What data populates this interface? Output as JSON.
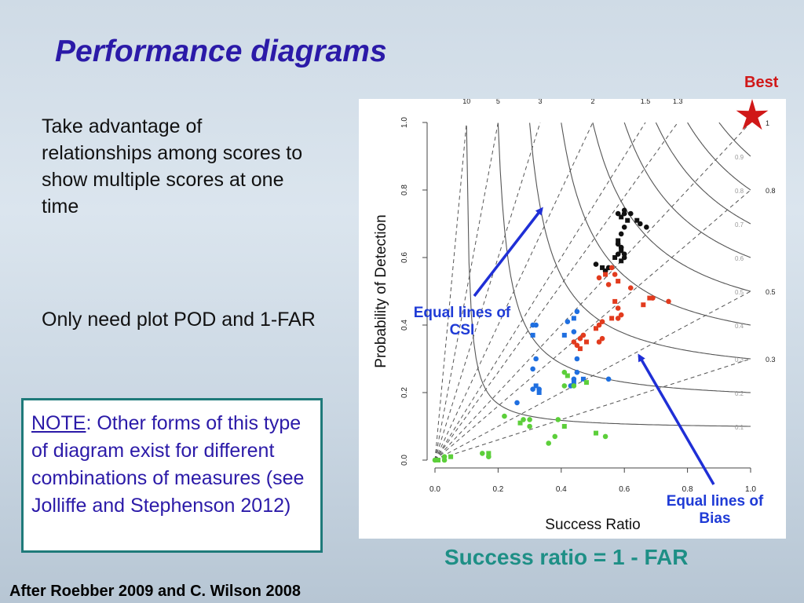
{
  "slide": {
    "title": "Performance diagrams",
    "para1": "Take advantage of relationships among scores to show multiple scores at one time",
    "para2": "Only need plot POD and 1-FAR",
    "note_word": "NOTE",
    "note_text": ":  Other forms of this type of diagram exist for different combinations of measures (see Jolliffe and Stephenson 2012)",
    "best_label": "Best",
    "csi_annotation": "Equal lines of CSI",
    "bias_annotation": "Equal lines of Bias",
    "formula": "Success ratio = 1 - FAR",
    "credit": "After Roebber 2009 and C. Wilson 2008"
  },
  "chart_data": {
    "type": "scatter",
    "xlabel": "Success Ratio",
    "ylabel": "Probability of Detection",
    "xlim": [
      0,
      1
    ],
    "ylim": [
      0,
      1
    ],
    "x_ticks": [
      "0.0",
      "0.2",
      "0.4",
      "0.6",
      "0.8",
      "1.0"
    ],
    "y_ticks": [
      "0.0",
      "0.2",
      "0.4",
      "0.6",
      "0.8",
      "1.0"
    ],
    "bias_lines": [
      10,
      5,
      3,
      2,
      1.5,
      1.3,
      1,
      0.8,
      0.5,
      0.3
    ],
    "bias_labels": [
      "10",
      "5",
      "3",
      "2",
      "1.5",
      "1.3",
      "1",
      "0.8",
      "0.5",
      "0.3"
    ],
    "csi_lines": [
      0.1,
      0.2,
      0.3,
      0.4,
      0.5,
      0.6,
      0.7,
      0.8,
      0.9
    ],
    "csi_labels": [
      "0.1",
      "0.2",
      "0.3",
      "0.4",
      "0.5",
      "0.6",
      "0.7",
      "0.8",
      "0.9"
    ],
    "best_point": [
      1,
      1
    ],
    "series": [
      {
        "color": "#111111",
        "points": [
          [
            0.51,
            0.58
          ],
          [
            0.53,
            0.57
          ],
          [
            0.54,
            0.56
          ],
          [
            0.55,
            0.57
          ],
          [
            0.57,
            0.6
          ],
          [
            0.58,
            0.61
          ],
          [
            0.59,
            0.63
          ],
          [
            0.58,
            0.65
          ],
          [
            0.59,
            0.67
          ],
          [
            0.6,
            0.69
          ],
          [
            0.61,
            0.71
          ],
          [
            0.6,
            0.73
          ],
          [
            0.58,
            0.73
          ],
          [
            0.59,
            0.72
          ],
          [
            0.6,
            0.74
          ],
          [
            0.62,
            0.73
          ],
          [
            0.64,
            0.71
          ],
          [
            0.65,
            0.7
          ],
          [
            0.67,
            0.69
          ],
          [
            0.59,
            0.62
          ],
          [
            0.6,
            0.61
          ],
          [
            0.58,
            0.64
          ],
          [
            0.59,
            0.59
          ],
          [
            0.6,
            0.6
          ]
        ]
      },
      {
        "color": "#e23b1e",
        "points": [
          [
            0.52,
            0.54
          ],
          [
            0.54,
            0.55
          ],
          [
            0.56,
            0.57
          ],
          [
            0.57,
            0.55
          ],
          [
            0.58,
            0.53
          ],
          [
            0.55,
            0.52
          ],
          [
            0.62,
            0.51
          ],
          [
            0.57,
            0.47
          ],
          [
            0.58,
            0.45
          ],
          [
            0.59,
            0.43
          ],
          [
            0.56,
            0.42
          ],
          [
            0.53,
            0.41
          ],
          [
            0.52,
            0.4
          ],
          [
            0.51,
            0.39
          ],
          [
            0.47,
            0.37
          ],
          [
            0.46,
            0.36
          ],
          [
            0.48,
            0.35
          ],
          [
            0.45,
            0.34
          ],
          [
            0.44,
            0.35
          ],
          [
            0.46,
            0.33
          ],
          [
            0.53,
            0.36
          ],
          [
            0.52,
            0.35
          ],
          [
            0.66,
            0.46
          ],
          [
            0.69,
            0.48
          ],
          [
            0.74,
            0.47
          ],
          [
            0.68,
            0.48
          ],
          [
            0.58,
            0.42
          ]
        ]
      },
      {
        "color": "#1f6fe0",
        "points": [
          [
            0.45,
            0.44
          ],
          [
            0.44,
            0.42
          ],
          [
            0.44,
            0.38
          ],
          [
            0.42,
            0.41
          ],
          [
            0.41,
            0.37
          ],
          [
            0.45,
            0.3
          ],
          [
            0.45,
            0.26
          ],
          [
            0.47,
            0.24
          ],
          [
            0.44,
            0.24
          ],
          [
            0.43,
            0.22
          ],
          [
            0.44,
            0.23
          ],
          [
            0.31,
            0.4
          ],
          [
            0.32,
            0.4
          ],
          [
            0.31,
            0.37
          ],
          [
            0.32,
            0.3
          ],
          [
            0.31,
            0.27
          ],
          [
            0.32,
            0.22
          ],
          [
            0.33,
            0.21
          ],
          [
            0.31,
            0.21
          ],
          [
            0.33,
            0.2
          ],
          [
            0.26,
            0.17
          ],
          [
            0.55,
            0.24
          ]
        ]
      },
      {
        "color": "#5ccf3a",
        "points": [
          [
            0.41,
            0.26
          ],
          [
            0.42,
            0.25
          ],
          [
            0.41,
            0.22
          ],
          [
            0.44,
            0.22
          ],
          [
            0.48,
            0.23
          ],
          [
            0.28,
            0.12
          ],
          [
            0.3,
            0.12
          ],
          [
            0.27,
            0.11
          ],
          [
            0.3,
            0.1
          ],
          [
            0.39,
            0.12
          ],
          [
            0.41,
            0.1
          ],
          [
            0.38,
            0.07
          ],
          [
            0.36,
            0.05
          ],
          [
            0.51,
            0.08
          ],
          [
            0.54,
            0.07
          ],
          [
            0.22,
            0.13
          ],
          [
            0.17,
            0.02
          ],
          [
            0.15,
            0.02
          ],
          [
            0.17,
            0.01
          ],
          [
            0.05,
            0.01
          ],
          [
            0.03,
            0.0
          ],
          [
            0.0,
            0.0
          ],
          [
            0.01,
            0.0
          ],
          [
            0.03,
            0.01
          ]
        ]
      }
    ]
  }
}
